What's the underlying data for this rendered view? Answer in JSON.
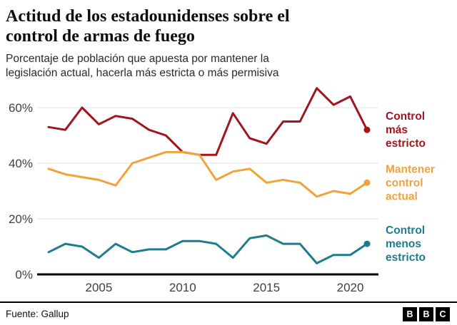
{
  "header": {
    "title": "Actitud de los estadounidenses sobre el control de armas de fuego",
    "title_lines": [
      "Actitud de los estadounidenses sobre el",
      "control de armas de fuego"
    ],
    "subtitle": "Porcentaje de población que apuesta por mantener la legislación actual, hacerla más estricta o más permisiva",
    "subtitle_lines": [
      "Porcentaje de población que apuesta por mantener la",
      "legislación actual, hacerla más estricta o más permisiva"
    ]
  },
  "chart_data": {
    "type": "line",
    "title": "Actitud de los estadounidenses sobre el control de armas de fuego",
    "subtitle": "Porcentaje de población que apuesta por mantener la legislación actual, hacerla más estricta o más permisiva",
    "x": [
      2002,
      2003,
      2004,
      2005,
      2006,
      2007,
      2008,
      2009,
      2010,
      2011,
      2012,
      2013,
      2014,
      2015,
      2016,
      2017,
      2018,
      2019,
      2020,
      2021
    ],
    "series": [
      {
        "name": "Control más estricto",
        "label_lines": [
          "Control",
          "más",
          "estricto"
        ],
        "color": "#a0161f",
        "values": [
          53,
          52,
          60,
          54,
          57,
          56,
          52,
          50,
          44,
          43,
          43,
          58,
          49,
          47,
          55,
          55,
          67,
          61,
          64,
          52
        ]
      },
      {
        "name": "Mantener control actual",
        "label_lines": [
          "Mantener",
          "control",
          "actual"
        ],
        "color": "#f0a33c",
        "values": [
          38,
          36,
          35,
          34,
          32,
          40,
          42,
          44,
          44,
          43,
          34,
          37,
          38,
          33,
          34,
          33,
          28,
          30,
          29,
          33
        ]
      },
      {
        "name": "Control menos estricto",
        "label_lines": [
          "Control",
          "menos",
          "estricto"
        ],
        "color": "#1e7d8c",
        "values": [
          8,
          11,
          10,
          6,
          11,
          8,
          9,
          9,
          12,
          12,
          11,
          6,
          13,
          14,
          11,
          11,
          4,
          7,
          7,
          11
        ]
      }
    ],
    "xticks": [
      2005,
      2010,
      2015,
      2020
    ],
    "yticks": [
      0,
      20,
      40,
      60
    ],
    "ytick_labels": [
      "0%",
      "20%",
      "40%",
      "60%"
    ],
    "ylim": [
      0,
      70
    ],
    "xlabel": "",
    "ylabel": "",
    "grid": "horizontal",
    "legend_position": "right",
    "grid_color": "#e2e2e2",
    "axis_color": "#000000"
  },
  "footer": {
    "source": "Fuente: Gallup",
    "logo_letters": [
      "B",
      "B",
      "C"
    ]
  }
}
